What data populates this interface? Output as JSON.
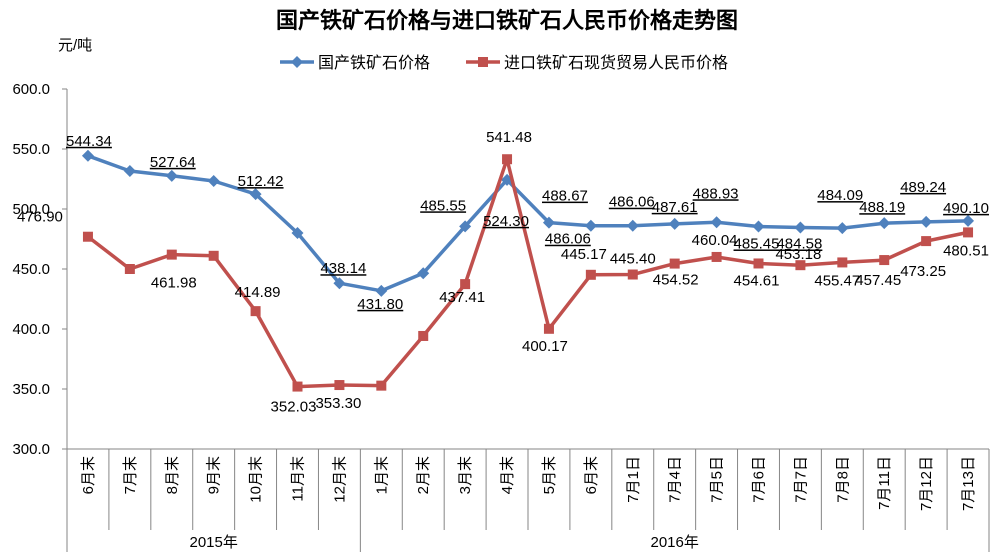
{
  "chart_data": {
    "type": "line",
    "title": "国产铁矿石价格与进口铁矿石人民币价格走势图",
    "ylabel": "元/吨",
    "ylim": [
      300,
      600
    ],
    "y_ticks": [
      "600.0",
      "550.0",
      "500.0",
      "450.0",
      "400.0",
      "350.0",
      "300.0"
    ],
    "grid": false,
    "legend_position": "top",
    "category_groups": [
      {
        "label": "2015年",
        "categories": [
          "6月末",
          "7月末",
          "8月末",
          "9月末",
          "10月末",
          "11月末",
          "12月末"
        ]
      },
      {
        "label": "2016年",
        "categories": [
          "1月末",
          "2月末",
          "3月末",
          "4月末",
          "5月末",
          "6月末",
          "7月1日",
          "7月4日",
          "7月5日",
          "7月6日",
          "7月7日",
          "7月8日",
          "7月11日",
          "7月12日",
          "7月13日"
        ]
      }
    ],
    "series": [
      {
        "name": "国产铁矿石价格",
        "color": "#4F81BD",
        "marker": "diamond",
        "values": [
          544.34,
          531.7,
          527.64,
          523.3,
          512.42,
          480.0,
          438.14,
          431.8,
          446.5,
          485.55,
          524.3,
          488.67,
          486.06,
          486.06,
          487.61,
          488.93,
          485.45,
          484.58,
          484.09,
          488.19,
          489.24,
          490.1
        ],
        "data_labels": [
          "544.34",
          null,
          "527.64",
          null,
          "512.42",
          null,
          "438.14",
          "431.80",
          null,
          "485.55",
          "524.30",
          "488.67",
          "486.06",
          "486.06",
          "487.61",
          "488.93",
          "485.45",
          "484.58",
          "484.09",
          "488.19",
          "489.24",
          "490.10"
        ]
      },
      {
        "name": "进口铁矿石现货贸易人民币价格",
        "color": "#C0504D",
        "marker": "square",
        "values": [
          476.9,
          450.0,
          461.98,
          461.0,
          414.89,
          352.03,
          353.3,
          352.8,
          394.2,
          437.41,
          541.48,
          400.17,
          445.17,
          445.4,
          454.52,
          460.04,
          454.61,
          453.18,
          455.47,
          457.45,
          473.25,
          480.51
        ],
        "data_labels": [
          "476.90",
          null,
          "461.98",
          null,
          "414.89",
          "352.03",
          "353.30",
          null,
          null,
          "437.41",
          "541.48",
          "400.17",
          "445.17",
          "445.40",
          "454.52",
          "460.04",
          "454.61",
          "453.18",
          "455.47",
          "457.45",
          "473.25",
          "480.51"
        ]
      }
    ]
  }
}
